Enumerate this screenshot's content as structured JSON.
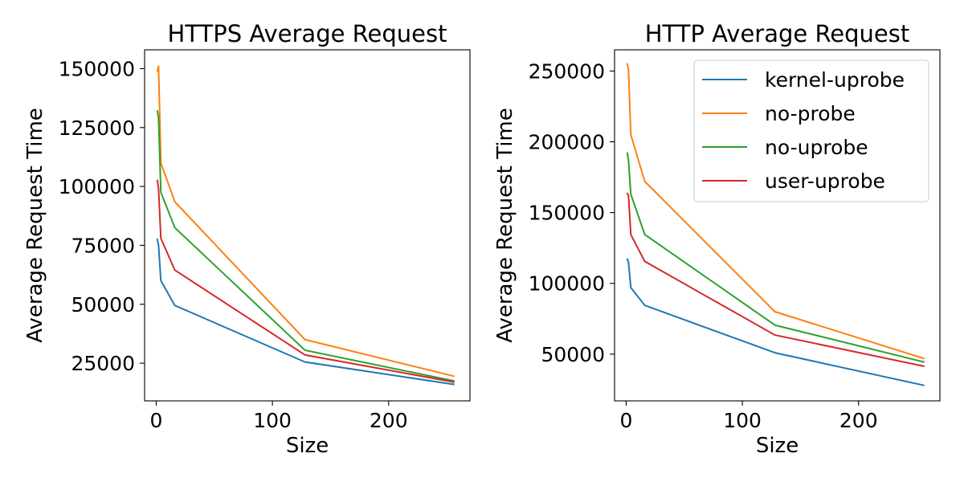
{
  "chart_data": [
    {
      "type": "line",
      "title": "HTTPS Average Request",
      "xlabel": "Size",
      "ylabel": "Average Request Time",
      "xlim": [
        -10,
        270
      ],
      "ylim": [
        9000,
        158000
      ],
      "xticks": [
        0,
        100,
        200
      ],
      "yticks": [
        25000,
        50000,
        75000,
        100000,
        125000,
        150000
      ],
      "xtick_labels": [
        "0",
        "100",
        "200"
      ],
      "ytick_labels": [
        "25000",
        "50000",
        "75000",
        "100000",
        "125000",
        "150000"
      ],
      "grid": false,
      "legend": false,
      "x": [
        1,
        2,
        4,
        16,
        128,
        256
      ],
      "series": [
        {
          "name": "kernel-uprobe",
          "color": "#1f77b4",
          "values": [
            77500,
            75000,
            60000,
            49500,
            25500,
            16000
          ]
        },
        {
          "name": "no-probe",
          "color": "#ff7f0e",
          "values": [
            149000,
            151000,
            110000,
            93500,
            35000,
            19500
          ]
        },
        {
          "name": "no-uprobe",
          "color": "#2ca02c",
          "values": [
            132000,
            129000,
            97500,
            82500,
            30500,
            17500
          ]
        },
        {
          "name": "user-uprobe",
          "color": "#d62728",
          "values": [
            102500,
            99000,
            78000,
            64500,
            28500,
            17000
          ]
        }
      ]
    },
    {
      "type": "line",
      "title": "HTTP Average Request",
      "xlabel": "Size",
      "ylabel": "Average Request Time",
      "xlim": [
        -10,
        270
      ],
      "ylim": [
        17000,
        265000
      ],
      "xticks": [
        0,
        100,
        200
      ],
      "yticks": [
        50000,
        100000,
        150000,
        200000,
        250000
      ],
      "xtick_labels": [
        "0",
        "100",
        "200"
      ],
      "ytick_labels": [
        "50000",
        "100000",
        "150000",
        "200000",
        "250000"
      ],
      "grid": false,
      "legend": "top-right",
      "x": [
        1,
        2,
        4,
        16,
        128,
        256
      ],
      "series": [
        {
          "name": "kernel-uprobe",
          "color": "#1f77b4",
          "values": [
            117000,
            115000,
            97000,
            84500,
            51000,
            28000
          ]
        },
        {
          "name": "no-probe",
          "color": "#ff7f0e",
          "values": [
            255000,
            251000,
            205000,
            172000,
            80000,
            47000
          ]
        },
        {
          "name": "no-uprobe",
          "color": "#2ca02c",
          "values": [
            192000,
            187000,
            163000,
            134500,
            70500,
            44500
          ]
        },
        {
          "name": "user-uprobe",
          "color": "#d62728",
          "values": [
            163500,
            162000,
            134500,
            115500,
            63500,
            41500
          ]
        }
      ]
    }
  ]
}
